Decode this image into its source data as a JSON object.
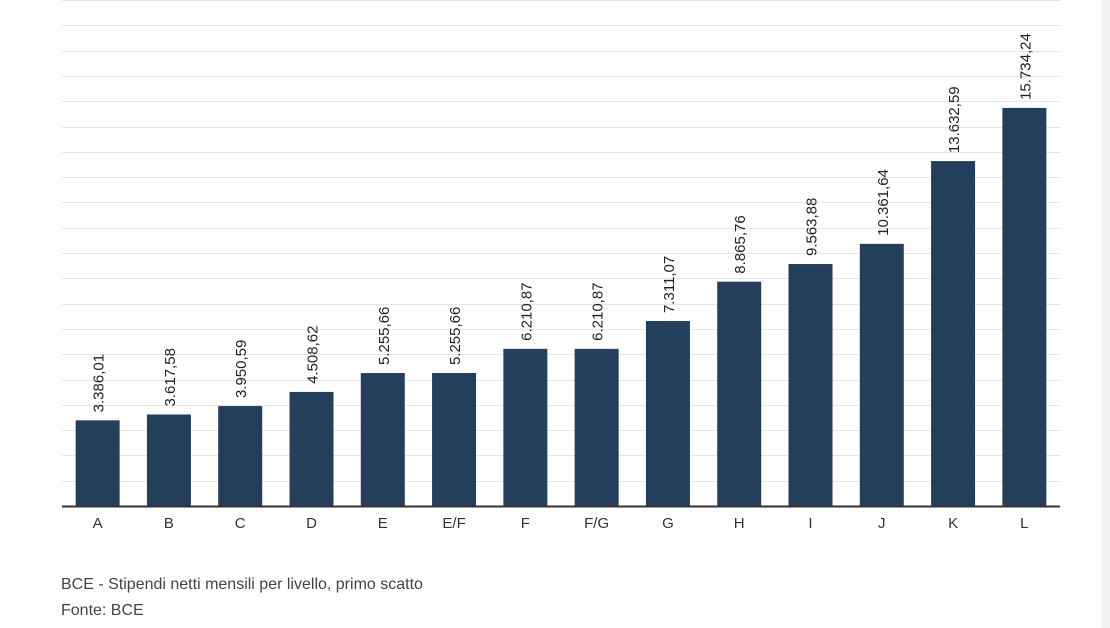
{
  "chart_data": {
    "type": "bar",
    "categories": [
      "A",
      "B",
      "C",
      "D",
      "E",
      "E/F",
      "F",
      "F/G",
      "G",
      "H",
      "I",
      "J",
      "K",
      "L"
    ],
    "values": [
      3386.01,
      3617.58,
      3950.59,
      4508.62,
      5255.66,
      5255.66,
      6210.87,
      6210.87,
      7311.07,
      8865.76,
      9563.88,
      10361.64,
      13632.59,
      15734.24
    ],
    "data_labels": [
      "3.386,01",
      "3.617,58",
      "3.950,59",
      "4.508,62",
      "5.255,66",
      "5.255,66",
      "6.210,87",
      "6.210,87",
      "7.311,07",
      "8.865,76",
      "9.563,88",
      "10.361,64",
      "13.632,59",
      "15.734,24"
    ],
    "ylim": [
      0,
      20000
    ],
    "grid": true,
    "colors": {
      "bar": "#243f5c",
      "grid": "#e6e6e6",
      "axis": "#333333",
      "text": "#222222"
    }
  },
  "caption": {
    "title": "BCE - Stipendi netti mensili per livello, primo scatto",
    "source": "Fonte: BCE"
  }
}
